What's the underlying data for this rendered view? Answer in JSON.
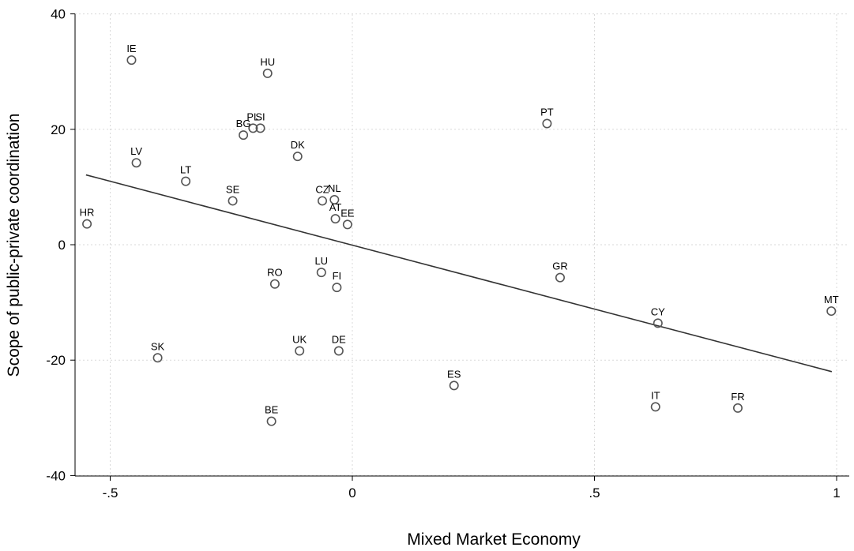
{
  "chart_data": {
    "type": "scatter",
    "title": "",
    "xlabel": "Mixed Market Economy",
    "ylabel": "Scope of public-private coordination",
    "xlim": [
      -0.58,
      1.02
    ],
    "ylim": [
      -40,
      40
    ],
    "xticks": [
      -0.5,
      0,
      0.5,
      1
    ],
    "xtick_labels": [
      "-.5",
      "0",
      ".5",
      "1"
    ],
    "yticks": [
      -40,
      -20,
      0,
      20,
      40
    ],
    "ytick_labels": [
      "-40",
      "-20",
      "0",
      "20",
      "40"
    ],
    "grid": true,
    "legend": "none",
    "marker_color": "#555555",
    "points": [
      {
        "label": "IE",
        "x": -0.456,
        "y": 32.0
      },
      {
        "label": "HU",
        "x": -0.175,
        "y": 29.7
      },
      {
        "label": "PT",
        "x": 0.402,
        "y": 21.0
      },
      {
        "label": "PL",
        "x": -0.205,
        "y": 20.2
      },
      {
        "label": "SI",
        "x": -0.19,
        "y": 20.2
      },
      {
        "label": "BG",
        "x": -0.225,
        "y": 19.0
      },
      {
        "label": "DK",
        "x": -0.113,
        "y": 15.3
      },
      {
        "label": "LV",
        "x": -0.446,
        "y": 14.2
      },
      {
        "label": "LT",
        "x": -0.344,
        "y": 11.0
      },
      {
        "label": "SE",
        "x": -0.247,
        "y": 7.6
      },
      {
        "label": "CZ",
        "x": -0.062,
        "y": 7.6
      },
      {
        "label": "NL",
        "x": -0.037,
        "y": 7.8
      },
      {
        "label": "AT",
        "x": -0.035,
        "y": 4.5
      },
      {
        "label": "EE",
        "x": -0.01,
        "y": 3.5
      },
      {
        "label": "HR",
        "x": -0.548,
        "y": 3.6
      },
      {
        "label": "LU",
        "x": -0.064,
        "y": -4.8
      },
      {
        "label": "GR",
        "x": 0.429,
        "y": -5.7
      },
      {
        "label": "RO",
        "x": -0.16,
        "y": -6.8
      },
      {
        "label": "FI",
        "x": -0.032,
        "y": -7.4
      },
      {
        "label": "CY",
        "x": 0.631,
        "y": -13.6
      },
      {
        "label": "MT",
        "x": 0.989,
        "y": -11.5
      },
      {
        "label": "UK",
        "x": -0.109,
        "y": -18.4
      },
      {
        "label": "DE",
        "x": -0.028,
        "y": -18.4
      },
      {
        "label": "SK",
        "x": -0.402,
        "y": -19.6
      },
      {
        "label": "ES",
        "x": 0.21,
        "y": -24.4
      },
      {
        "label": "IT",
        "x": 0.626,
        "y": -28.1
      },
      {
        "label": "FR",
        "x": 0.796,
        "y": -28.3
      },
      {
        "label": "BE",
        "x": -0.167,
        "y": -30.6
      }
    ],
    "fit_line": {
      "x": [
        -0.55,
        0.99
      ],
      "y": [
        12.1,
        -22.0
      ]
    }
  }
}
